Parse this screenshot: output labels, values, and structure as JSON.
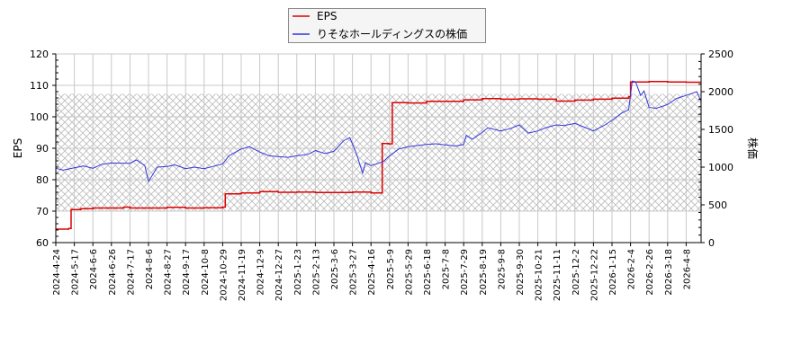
{
  "chart_data": {
    "type": "line",
    "title": "",
    "legend": {
      "position": "top-center",
      "entries": [
        {
          "label": "EPS",
          "color": "#dd0000"
        },
        {
          "label": "りそなホールディングスの株価",
          "color": "#3333dd"
        }
      ]
    },
    "xlabel": "",
    "ylabel_left": "EPS",
    "ylabel_right": "株価",
    "ylim_left": [
      60,
      120
    ],
    "ylim_right": [
      0,
      2500
    ],
    "yticks_left": [
      60,
      70,
      80,
      90,
      100,
      110,
      120
    ],
    "yticks_right": [
      0,
      500,
      1000,
      1500,
      2000,
      2500
    ],
    "grid": true,
    "hatched_band": {
      "eps_from": 70,
      "eps_to": 107.3
    },
    "x_tick_labels": [
      "2024-4-24",
      "2024-5-17",
      "2024-6-6",
      "2024-6-26",
      "2024-7-17",
      "2024-8-6",
      "2024-8-27",
      "2024-9-17",
      "2024-10-8",
      "2024-10-29",
      "2024-11-19",
      "2024-12-9",
      "2024-12-27",
      "2025-1-23",
      "2025-2-13",
      "2025-3-6",
      "2025-3-27",
      "2025-4-16",
      "2025-5-9",
      "2025-5-29",
      "2025-6-18",
      "2025-7-8",
      "2025-7-29",
      "2025-8-19",
      "2025-9-8",
      "2025-9-30",
      "2025-10-21",
      "2025-11-11",
      "2025-12-2",
      "2025-12-22",
      "2026-1-15",
      "2026-2-4",
      "2026-2-26",
      "2026-3-18",
      "2026-4-8"
    ],
    "series": [
      {
        "name": "EPS",
        "axis": "left",
        "color": "#dd0000",
        "step": true,
        "points": [
          [
            "2024-4-24",
            64.3
          ],
          [
            "2024-5-10",
            64.5
          ],
          [
            "2024-5-13",
            70.5
          ],
          [
            "2024-5-24",
            70.8
          ],
          [
            "2024-6-6",
            71.0
          ],
          [
            "2024-7-10",
            71.3
          ],
          [
            "2024-7-17",
            71.0
          ],
          [
            "2024-8-27",
            71.2
          ],
          [
            "2024-9-17",
            71.0
          ],
          [
            "2024-10-8",
            71.1
          ],
          [
            "2024-10-29",
            71.3
          ],
          [
            "2024-11-1",
            75.5
          ],
          [
            "2024-11-19",
            75.8
          ],
          [
            "2024-12-9",
            76.2
          ],
          [
            "2024-12-27",
            76.0
          ],
          [
            "2025-1-23",
            76.1
          ],
          [
            "2025-2-13",
            75.9
          ],
          [
            "2025-3-6",
            75.9
          ],
          [
            "2025-3-27",
            76.1
          ],
          [
            "2025-4-16",
            75.8
          ],
          [
            "2025-4-28",
            75.8
          ],
          [
            "2025-4-30",
            91.5
          ],
          [
            "2025-5-8",
            91.4
          ],
          [
            "2025-5-12",
            104.5
          ],
          [
            "2025-5-29",
            104.4
          ],
          [
            "2025-6-18",
            104.9
          ],
          [
            "2025-7-8",
            104.9
          ],
          [
            "2025-7-29",
            105.4
          ],
          [
            "2025-8-19",
            105.8
          ],
          [
            "2025-9-8",
            105.6
          ],
          [
            "2025-9-30",
            105.7
          ],
          [
            "2025-10-21",
            105.6
          ],
          [
            "2025-11-11",
            105.0
          ],
          [
            "2025-12-2",
            105.3
          ],
          [
            "2025-12-22",
            105.6
          ],
          [
            "2026-1-15",
            105.9
          ],
          [
            "2026-2-2",
            106.4
          ],
          [
            "2026-2-4",
            111.1
          ],
          [
            "2026-2-26",
            111.2
          ],
          [
            "2026-3-18",
            111.1
          ],
          [
            "2026-4-8",
            111.0
          ],
          [
            "2026-4-30",
            111.0
          ]
        ]
      },
      {
        "name": "りそなホールディングスの株価",
        "axis": "right",
        "color": "#3333dd",
        "points": [
          [
            "2024-4-24",
            985
          ],
          [
            "2024-5-3",
            960
          ],
          [
            "2024-5-17",
            990
          ],
          [
            "2024-5-27",
            1015
          ],
          [
            "2024-6-6",
            985
          ],
          [
            "2024-6-15",
            1035
          ],
          [
            "2024-6-26",
            1055
          ],
          [
            "2024-7-17",
            1050
          ],
          [
            "2024-7-24",
            1095
          ],
          [
            "2024-8-2",
            1020
          ],
          [
            "2024-8-6",
            810
          ],
          [
            "2024-8-16",
            1000
          ],
          [
            "2024-8-27",
            1010
          ],
          [
            "2024-9-5",
            1030
          ],
          [
            "2024-9-17",
            980
          ],
          [
            "2024-9-27",
            1000
          ],
          [
            "2024-10-8",
            980
          ],
          [
            "2024-10-18",
            1010
          ],
          [
            "2024-10-29",
            1040
          ],
          [
            "2024-11-5",
            1150
          ],
          [
            "2024-11-19",
            1240
          ],
          [
            "2024-11-28",
            1270
          ],
          [
            "2024-12-9",
            1200
          ],
          [
            "2024-12-18",
            1150
          ],
          [
            "2024-12-27",
            1140
          ],
          [
            "2025-1-10",
            1130
          ],
          [
            "2025-1-23",
            1150
          ],
          [
            "2025-2-5",
            1170
          ],
          [
            "2025-2-13",
            1220
          ],
          [
            "2025-2-24",
            1180
          ],
          [
            "2025-3-6",
            1210
          ],
          [
            "2025-3-17",
            1350
          ],
          [
            "2025-3-24",
            1390
          ],
          [
            "2025-3-31",
            1190
          ],
          [
            "2025-4-7",
            920
          ],
          [
            "2025-4-10",
            1060
          ],
          [
            "2025-4-16",
            1020
          ],
          [
            "2025-4-25",
            1050
          ],
          [
            "2025-5-2",
            1080
          ],
          [
            "2025-5-9",
            1150
          ],
          [
            "2025-5-19",
            1240
          ],
          [
            "2025-5-29",
            1270
          ],
          [
            "2025-6-18",
            1300
          ],
          [
            "2025-6-28",
            1310
          ],
          [
            "2025-7-8",
            1295
          ],
          [
            "2025-7-20",
            1280
          ],
          [
            "2025-7-29",
            1300
          ],
          [
            "2025-8-1",
            1420
          ],
          [
            "2025-8-8",
            1370
          ],
          [
            "2025-8-19",
            1460
          ],
          [
            "2025-8-25",
            1520
          ],
          [
            "2025-9-8",
            1480
          ],
          [
            "2025-9-19",
            1510
          ],
          [
            "2025-9-30",
            1560
          ],
          [
            "2025-10-10",
            1450
          ],
          [
            "2025-10-21",
            1480
          ],
          [
            "2025-11-1",
            1530
          ],
          [
            "2025-11-11",
            1560
          ],
          [
            "2025-11-20",
            1550
          ],
          [
            "2025-12-2",
            1580
          ],
          [
            "2025-12-12",
            1530
          ],
          [
            "2025-12-22",
            1480
          ],
          [
            "2026-1-6",
            1560
          ],
          [
            "2026-1-15",
            1620
          ],
          [
            "2026-1-26",
            1720
          ],
          [
            "2026-2-2",
            1760
          ],
          [
            "2026-2-6",
            2140
          ],
          [
            "2026-2-10",
            2130
          ],
          [
            "2026-2-16",
            1950
          ],
          [
            "2026-2-20",
            2010
          ],
          [
            "2026-2-26",
            1790
          ],
          [
            "2026-3-6",
            1780
          ],
          [
            "2026-3-18",
            1830
          ],
          [
            "2026-3-28",
            1910
          ],
          [
            "2026-4-8",
            1950
          ],
          [
            "2026-4-20",
            2000
          ],
          [
            "2026-4-30",
            1870
          ]
        ]
      }
    ]
  }
}
